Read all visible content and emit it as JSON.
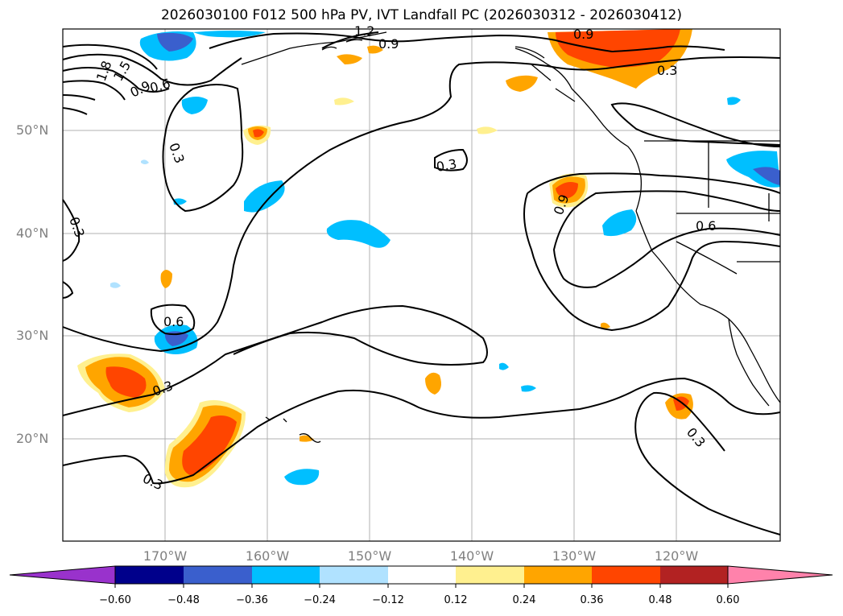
{
  "title": "2026030100 F012 500 hPa PV, IVT Landfall PC (2026030312 - 2026030412)",
  "lat_labels": [
    "50°N",
    "40°N",
    "30°N",
    "20°N"
  ],
  "lon_labels": [
    "170°W",
    "160°W",
    "150°W",
    "140°W",
    "130°W",
    "120°W"
  ],
  "colorbar": {
    "ticks": [
      "−0.60",
      "−0.48",
      "−0.36",
      "−0.24",
      "−0.12",
      "0.12",
      "0.24",
      "0.36",
      "0.48",
      "0.60"
    ],
    "colors": [
      "#9932cc",
      "#00008b",
      "#3a5fcd",
      "#00bfff",
      "#b0e2ff",
      "#ffffff",
      "#fff08f",
      "#ffa500",
      "#ff4500",
      "#b22222",
      "#ff82ab"
    ]
  },
  "contour_labels": [
    "0.3",
    "0.6",
    "0.9",
    "1.2",
    "1.5",
    "1.8"
  ],
  "colors": {
    "grid": "#b0b0b0",
    "contour": "#000000",
    "coast": "#000000",
    "axis_label": "#808080"
  }
}
